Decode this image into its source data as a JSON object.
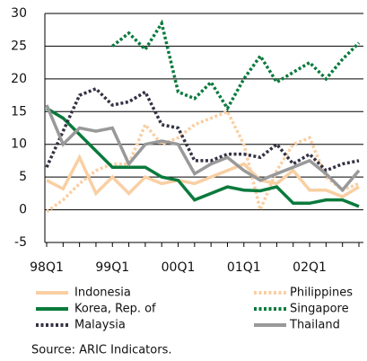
{
  "chart_data": {
    "type": "line",
    "categories": [
      "98Q1",
      null,
      null,
      null,
      "99Q1",
      null,
      null,
      null,
      "00Q1",
      null,
      null,
      null,
      "01Q1",
      null,
      null,
      null,
      "02Q1",
      null,
      null,
      null
    ],
    "series": [
      {
        "name": "Indonesia",
        "color": "#f9cfa3",
        "style": "solid",
        "values": [
          4.5,
          3.2,
          8,
          2.5,
          5,
          2.5,
          5,
          4,
          4.5,
          4,
          5,
          6,
          7,
          4.5,
          4,
          6,
          3,
          3,
          2,
          3.5
        ]
      },
      {
        "name": "Philippines",
        "color": "#f9cfa3",
        "style": "dotted",
        "values": [
          -0.3,
          1.5,
          4,
          6,
          7,
          7,
          13,
          10,
          11,
          13,
          14,
          15,
          10,
          0,
          6,
          10,
          11,
          5,
          3,
          4
        ]
      },
      {
        "name": "Korea, Rep. of",
        "color": "#0a7a3c",
        "style": "solid",
        "values": [
          15.5,
          14,
          11.5,
          9,
          6.5,
          6.5,
          6.5,
          5,
          4.5,
          1.5,
          2.5,
          3.5,
          3,
          2.9,
          3.5,
          1,
          1,
          1.5,
          1.5,
          0.5
        ]
      },
      {
        "name": "Singapore",
        "color": "#0a7a3c",
        "style": "dotted",
        "values": [
          null,
          null,
          null,
          null,
          25,
          27,
          24.5,
          28.5,
          18,
          17,
          19.5,
          15.5,
          20,
          23.5,
          19.5,
          21,
          22.5,
          20,
          23,
          25.5
        ]
      },
      {
        "name": "Malaysia",
        "color": "#333344",
        "style": "dotted",
        "values": [
          6.5,
          12,
          17.5,
          18.5,
          16,
          16.5,
          18,
          13,
          12.5,
          7.5,
          7.5,
          8.5,
          8.5,
          8,
          10,
          7,
          8.5,
          6,
          7,
          7.5
        ]
      },
      {
        "name": "Thailand",
        "color": "#999999",
        "style": "solid",
        "values": [
          16,
          10,
          12.5,
          12,
          12.5,
          7,
          10,
          10.5,
          10,
          5.5,
          7,
          8,
          6,
          4.5,
          5.5,
          6.5,
          7.5,
          5.5,
          3,
          6
        ]
      }
    ],
    "ylim": [
      -5,
      30
    ],
    "yticks": [
      -5,
      0,
      5,
      10,
      15,
      20,
      25,
      30
    ],
    "grid": true,
    "legend": "bottom",
    "source": "Source: ARIC Indicators."
  }
}
